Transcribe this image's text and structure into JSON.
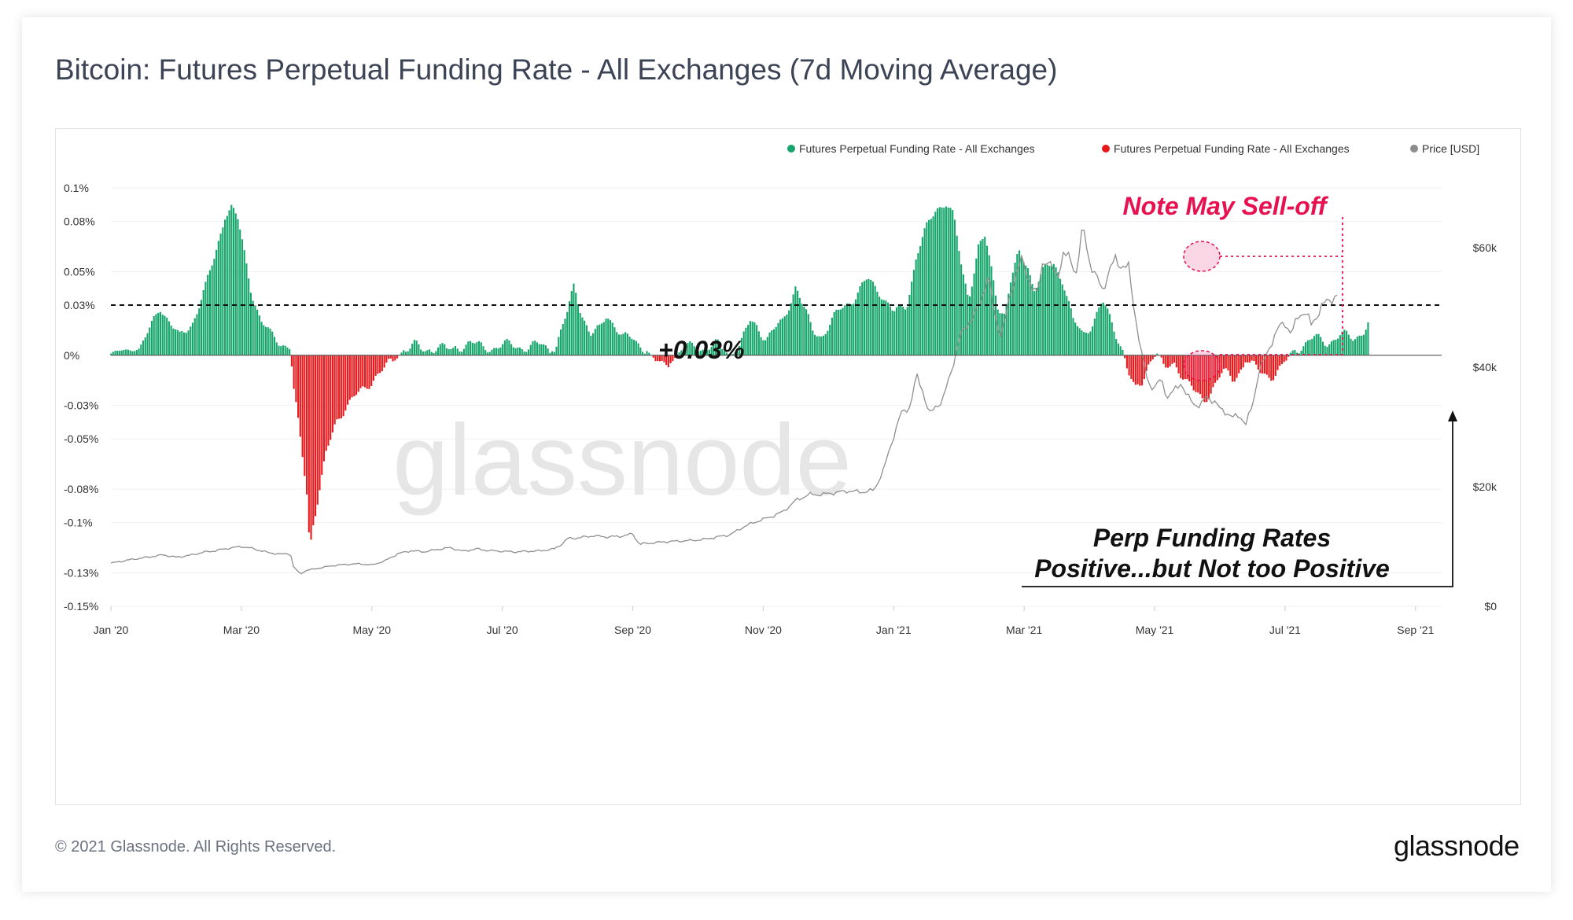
{
  "title": "Bitcoin: Futures Perpetual Funding Rate - All Exchanges (7d Moving Average)",
  "footer": "© 2021 Glassnode. All Rights Reserved.",
  "brand": "glassnode",
  "watermark": "glassnode",
  "chart_data": {
    "type": "bar",
    "legend": [
      {
        "name": "Futures Perpetual Funding Rate - All Exchanges",
        "color": "#16a56b"
      },
      {
        "name": "Futures Perpetual Funding Rate - All Exchanges",
        "color": "#e8191d"
      },
      {
        "name": "Price [USD]",
        "color": "#8c8c8c"
      }
    ],
    "x_ticks": [
      "Jan '20",
      "Mar '20",
      "May '20",
      "Jul '20",
      "Sep '20",
      "Nov '20",
      "Jan '21",
      "Mar '21",
      "May '21",
      "Jul '21",
      "Sep '21"
    ],
    "x_range": [
      0,
      20.4
    ],
    "y_left": {
      "min": -0.15,
      "max": 0.1,
      "ticks": [
        0.1,
        0.08,
        0.05,
        0.03,
        0,
        -0.03,
        -0.05,
        -0.08,
        -0.1,
        -0.13,
        -0.15
      ],
      "tick_labels": [
        "0.1%",
        "0.08%",
        "0.05%",
        "0.03%",
        "0%",
        "-0.03%",
        "-0.05%",
        "-0.08%",
        "-0.1%",
        "-0.13%",
        "-0.15%"
      ]
    },
    "y_right": {
      "min": 0,
      "max": 70000,
      "ticks": [
        60000,
        40000,
        20000,
        0
      ],
      "tick_labels": [
        "$60k",
        "$40k",
        "$20k",
        "$0"
      ]
    },
    "funding_keyframes": [
      [
        0,
        0.001
      ],
      [
        0.2,
        0.003
      ],
      [
        0.45,
        0.004
      ],
      [
        0.6,
        0.015
      ],
      [
        0.75,
        0.03
      ],
      [
        0.9,
        0.02
      ],
      [
        1.05,
        0.01
      ],
      [
        1.25,
        0.02
      ],
      [
        1.45,
        0.04
      ],
      [
        1.6,
        0.06
      ],
      [
        1.75,
        0.085
      ],
      [
        1.85,
        0.088
      ],
      [
        1.95,
        0.08
      ],
      [
        2.05,
        0.06
      ],
      [
        2.15,
        0.04
      ],
      [
        2.3,
        0.02
      ],
      [
        2.45,
        0.012
      ],
      [
        2.6,
        0.008
      ],
      [
        2.75,
        0.005
      ],
      [
        2.8,
        -0.02
      ],
      [
        2.9,
        -0.05
      ],
      [
        3.0,
        -0.08
      ],
      [
        3.05,
        -0.115
      ],
      [
        3.1,
        -0.1
      ],
      [
        3.2,
        -0.08
      ],
      [
        3.3,
        -0.06
      ],
      [
        3.45,
        -0.04
      ],
      [
        3.6,
        -0.03
      ],
      [
        3.75,
        -0.025
      ],
      [
        3.9,
        -0.02
      ],
      [
        4.05,
        -0.012
      ],
      [
        4.2,
        -0.008
      ],
      [
        4.35,
        -0.003
      ],
      [
        4.5,
        0.004
      ],
      [
        4.65,
        0.006
      ],
      [
        4.8,
        0.002
      ],
      [
        5.0,
        0.006
      ],
      [
        5.2,
        0.003
      ],
      [
        5.5,
        0.008
      ],
      [
        5.7,
        0.004
      ],
      [
        6.0,
        0.006
      ],
      [
        6.4,
        0.005
      ],
      [
        6.6,
        0.006
      ],
      [
        6.8,
        0.003
      ],
      [
        7.0,
        0.025
      ],
      [
        7.1,
        0.042
      ],
      [
        7.2,
        0.028
      ],
      [
        7.35,
        0.012
      ],
      [
        7.5,
        0.015
      ],
      [
        7.6,
        0.025
      ],
      [
        7.7,
        0.02
      ],
      [
        7.85,
        0.01
      ],
      [
        8.0,
        0.01
      ],
      [
        8.2,
        0.004
      ],
      [
        8.35,
        -0.004
      ],
      [
        8.5,
        -0.006
      ],
      [
        8.6,
        -0.003
      ],
      [
        8.75,
        0.003
      ],
      [
        8.95,
        0.006
      ],
      [
        9.1,
        0.004
      ],
      [
        9.3,
        0.006
      ],
      [
        9.5,
        0.0
      ],
      [
        9.65,
        0.006
      ],
      [
        9.8,
        0.02
      ],
      [
        9.9,
        0.018
      ],
      [
        10.05,
        0.01
      ],
      [
        10.3,
        0.02
      ],
      [
        10.5,
        0.042
      ],
      [
        10.6,
        0.03
      ],
      [
        10.75,
        0.015
      ],
      [
        10.9,
        0.012
      ],
      [
        11.05,
        0.02
      ],
      [
        11.2,
        0.028
      ],
      [
        11.4,
        0.035
      ],
      [
        11.6,
        0.045
      ],
      [
        11.8,
        0.038
      ],
      [
        12.0,
        0.025
      ],
      [
        12.2,
        0.03
      ],
      [
        12.35,
        0.06
      ],
      [
        12.5,
        0.075
      ],
      [
        12.65,
        0.088
      ],
      [
        12.8,
        0.092
      ],
      [
        12.92,
        0.082
      ],
      [
        13.05,
        0.05
      ],
      [
        13.15,
        0.035
      ],
      [
        13.3,
        0.065
      ],
      [
        13.4,
        0.07
      ],
      [
        13.5,
        0.05
      ],
      [
        13.6,
        0.03
      ],
      [
        13.7,
        0.025
      ],
      [
        13.8,
        0.045
      ],
      [
        13.92,
        0.06
      ],
      [
        14.05,
        0.055
      ],
      [
        14.15,
        0.04
      ],
      [
        14.3,
        0.05
      ],
      [
        14.45,
        0.055
      ],
      [
        14.6,
        0.045
      ],
      [
        14.75,
        0.02
      ],
      [
        14.9,
        0.012
      ],
      [
        15.05,
        0.02
      ],
      [
        15.2,
        0.032
      ],
      [
        15.35,
        0.018
      ],
      [
        15.5,
        0.005
      ],
      [
        15.6,
        -0.01
      ],
      [
        15.7,
        -0.022
      ],
      [
        15.8,
        -0.018
      ],
      [
        15.9,
        -0.005
      ],
      [
        16.05,
        0.002
      ],
      [
        16.15,
        -0.01
      ],
      [
        16.3,
        -0.005
      ],
      [
        16.45,
        -0.012
      ],
      [
        16.6,
        -0.022
      ],
      [
        16.75,
        -0.028
      ],
      [
        16.9,
        -0.018
      ],
      [
        17.05,
        -0.01
      ],
      [
        17.2,
        -0.015
      ],
      [
        17.4,
        -0.003
      ],
      [
        17.6,
        -0.01
      ],
      [
        17.8,
        -0.012
      ],
      [
        17.95,
        -0.008
      ],
      [
        18.1,
        0.002
      ],
      [
        18.25,
        0.006
      ],
      [
        18.45,
        0.01
      ],
      [
        18.65,
        0.008
      ],
      [
        18.85,
        0.012
      ],
      [
        19.05,
        0.01
      ],
      [
        19.2,
        0.015
      ],
      [
        19.3,
        0.021
      ]
    ],
    "price_keyframes": [
      [
        0,
        7200
      ],
      [
        0.3,
        7800
      ],
      [
        0.5,
        8100
      ],
      [
        0.8,
        8600
      ],
      [
        1.0,
        8200
      ],
      [
        1.2,
        8500
      ],
      [
        1.4,
        9000
      ],
      [
        1.6,
        9300
      ],
      [
        1.8,
        9700
      ],
      [
        2.0,
        10000
      ],
      [
        2.2,
        9600
      ],
      [
        2.4,
        9000
      ],
      [
        2.6,
        8700
      ],
      [
        2.75,
        8900
      ],
      [
        2.8,
        6600
      ],
      [
        2.9,
        5400
      ],
      [
        3.0,
        6000
      ],
      [
        3.2,
        6400
      ],
      [
        3.4,
        6800
      ],
      [
        3.6,
        7000
      ],
      [
        3.8,
        7100
      ],
      [
        4.0,
        6900
      ],
      [
        4.2,
        7600
      ],
      [
        4.4,
        8800
      ],
      [
        4.6,
        9300
      ],
      [
        4.8,
        9100
      ],
      [
        5.0,
        9500
      ],
      [
        5.2,
        9800
      ],
      [
        5.4,
        9200
      ],
      [
        5.6,
        9600
      ],
      [
        5.8,
        9300
      ],
      [
        6.0,
        9200
      ],
      [
        6.2,
        9100
      ],
      [
        6.4,
        9200
      ],
      [
        6.6,
        9300
      ],
      [
        6.8,
        9600
      ],
      [
        6.9,
        10300
      ],
      [
        7.0,
        11300
      ],
      [
        7.2,
        11500
      ],
      [
        7.4,
        11800
      ],
      [
        7.6,
        11600
      ],
      [
        7.8,
        11700
      ],
      [
        8.0,
        12100
      ],
      [
        8.1,
        10400
      ],
      [
        8.3,
        10600
      ],
      [
        8.5,
        10800
      ],
      [
        8.7,
        10900
      ],
      [
        8.9,
        11000
      ],
      [
        9.1,
        11200
      ],
      [
        9.3,
        11600
      ],
      [
        9.5,
        12000
      ],
      [
        9.7,
        13300
      ],
      [
        9.9,
        14200
      ],
      [
        10.1,
        14900
      ],
      [
        10.3,
        15800
      ],
      [
        10.5,
        17700
      ],
      [
        10.7,
        18700
      ],
      [
        10.9,
        18700
      ],
      [
        11.1,
        19000
      ],
      [
        11.3,
        19300
      ],
      [
        11.5,
        19100
      ],
      [
        11.7,
        19400
      ],
      [
        11.85,
        23000
      ],
      [
        12.0,
        28500
      ],
      [
        12.1,
        32000
      ],
      [
        12.25,
        33500
      ],
      [
        12.35,
        38500
      ],
      [
        12.45,
        36000
      ],
      [
        12.55,
        32000
      ],
      [
        12.65,
        33500
      ],
      [
        12.75,
        34500
      ],
      [
        12.85,
        38000
      ],
      [
        13.0,
        44500
      ],
      [
        13.15,
        47600
      ],
      [
        13.3,
        49800
      ],
      [
        13.45,
        55500
      ],
      [
        13.55,
        48300
      ],
      [
        13.65,
        45500
      ],
      [
        13.75,
        50000
      ],
      [
        13.85,
        55000
      ],
      [
        13.95,
        58000
      ],
      [
        14.1,
        54000
      ],
      [
        14.2,
        52000
      ],
      [
        14.3,
        58500
      ],
      [
        14.4,
        57000
      ],
      [
        14.5,
        55000
      ],
      [
        14.6,
        59000
      ],
      [
        14.7,
        58000
      ],
      [
        14.8,
        56000
      ],
      [
        14.9,
        63400
      ],
      [
        15.0,
        58000
      ],
      [
        15.1,
        55000
      ],
      [
        15.2,
        53000
      ],
      [
        15.3,
        56000
      ],
      [
        15.4,
        58000
      ],
      [
        15.5,
        57000
      ],
      [
        15.6,
        56500
      ],
      [
        15.7,
        49000
      ],
      [
        15.8,
        42000
      ],
      [
        15.9,
        37500
      ],
      [
        16.0,
        36500
      ],
      [
        16.1,
        38000
      ],
      [
        16.2,
        35000
      ],
      [
        16.3,
        36000
      ],
      [
        16.4,
        37500
      ],
      [
        16.5,
        35000
      ],
      [
        16.6,
        34000
      ],
      [
        16.7,
        33500
      ],
      [
        16.8,
        35000
      ],
      [
        16.9,
        34500
      ],
      [
        17.0,
        33000
      ],
      [
        17.1,
        32500
      ],
      [
        17.2,
        31500
      ],
      [
        17.3,
        32000
      ],
      [
        17.4,
        30500
      ],
      [
        17.5,
        33500
      ],
      [
        17.6,
        39500
      ],
      [
        17.7,
        41500
      ],
      [
        17.8,
        44500
      ],
      [
        17.9,
        46500
      ],
      [
        18.0,
        47500
      ],
      [
        18.1,
        45500
      ],
      [
        18.2,
        48500
      ],
      [
        18.3,
        49500
      ],
      [
        18.4,
        47000
      ],
      [
        18.55,
        50000
      ],
      [
        18.7,
        51500
      ],
      [
        18.8,
        52000
      ]
    ],
    "funding_threshold": 0.03,
    "annotations": [
      "+0.03%",
      "Note May Sell-off",
      "Perp Funding Rates",
      "Positive...but Not too Positive"
    ]
  }
}
